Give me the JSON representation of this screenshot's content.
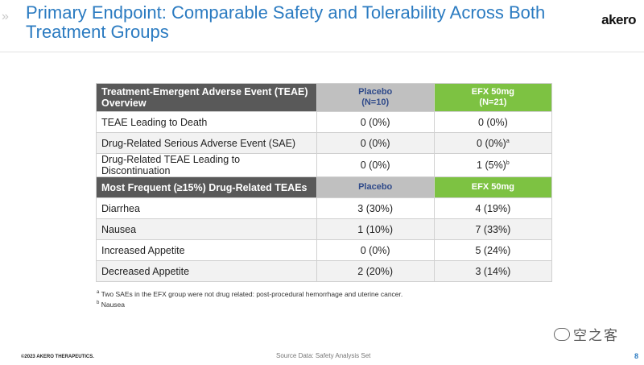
{
  "slide": {
    "title": "Primary Endpoint: Comparable Safety and Tolerability Across Both Treatment Groups",
    "logo": "akero",
    "chevrons": "»"
  },
  "table": {
    "header1": {
      "label": "Treatment-Emergent Adverse Event (TEAE) Overview",
      "placebo": "Placebo",
      "placebo_n": "(N=10)",
      "efx": "EFX 50mg",
      "efx_n": "(N=21)"
    },
    "section1_rows": [
      {
        "label": "TEAE Leading to Death",
        "placebo": "0 (0%)",
        "efx": "0 (0%)",
        "efx_sup": ""
      },
      {
        "label": "Drug-Related Serious Adverse Event (SAE)",
        "placebo": "0 (0%)",
        "efx": "0 (0%)",
        "efx_sup": "a"
      },
      {
        "label": "Drug-Related TEAE Leading to Discontinuation",
        "placebo": "0 (0%)",
        "efx": "1 (5%)",
        "efx_sup": "b"
      }
    ],
    "header2": {
      "label": "Most Frequent (≥15%) Drug-Related TEAEs",
      "placebo": "Placebo",
      "efx": "EFX 50mg"
    },
    "section2_rows": [
      {
        "label": "Diarrhea",
        "placebo": "3 (30%)",
        "efx": "4 (19%)"
      },
      {
        "label": "Nausea",
        "placebo": "1 (10%)",
        "efx": "7 (33%)"
      },
      {
        "label": "Increased Appetite",
        "placebo": "0 (0%)",
        "efx": "5 (24%)"
      },
      {
        "label": "Decreased Appetite",
        "placebo": "2 (20%)",
        "efx": "3 (14%)"
      }
    ]
  },
  "footnotes": [
    {
      "mark": "a",
      "text": "Two SAEs in the EFX group were not drug related: post-procedural hemorrhage and uterine cancer."
    },
    {
      "mark": "b",
      "text": "Nausea"
    }
  ],
  "footer": {
    "copyright": "©2023 AKERO THERAPEUTICS.",
    "source": "Source Data: Safety Analysis Set",
    "page": "8",
    "watermark": "空之客"
  },
  "colors": {
    "title": "#2b7bc1",
    "header_dark": "#595959",
    "placebo_header": "#c0c0c0",
    "efx_header": "#7dc242"
  }
}
